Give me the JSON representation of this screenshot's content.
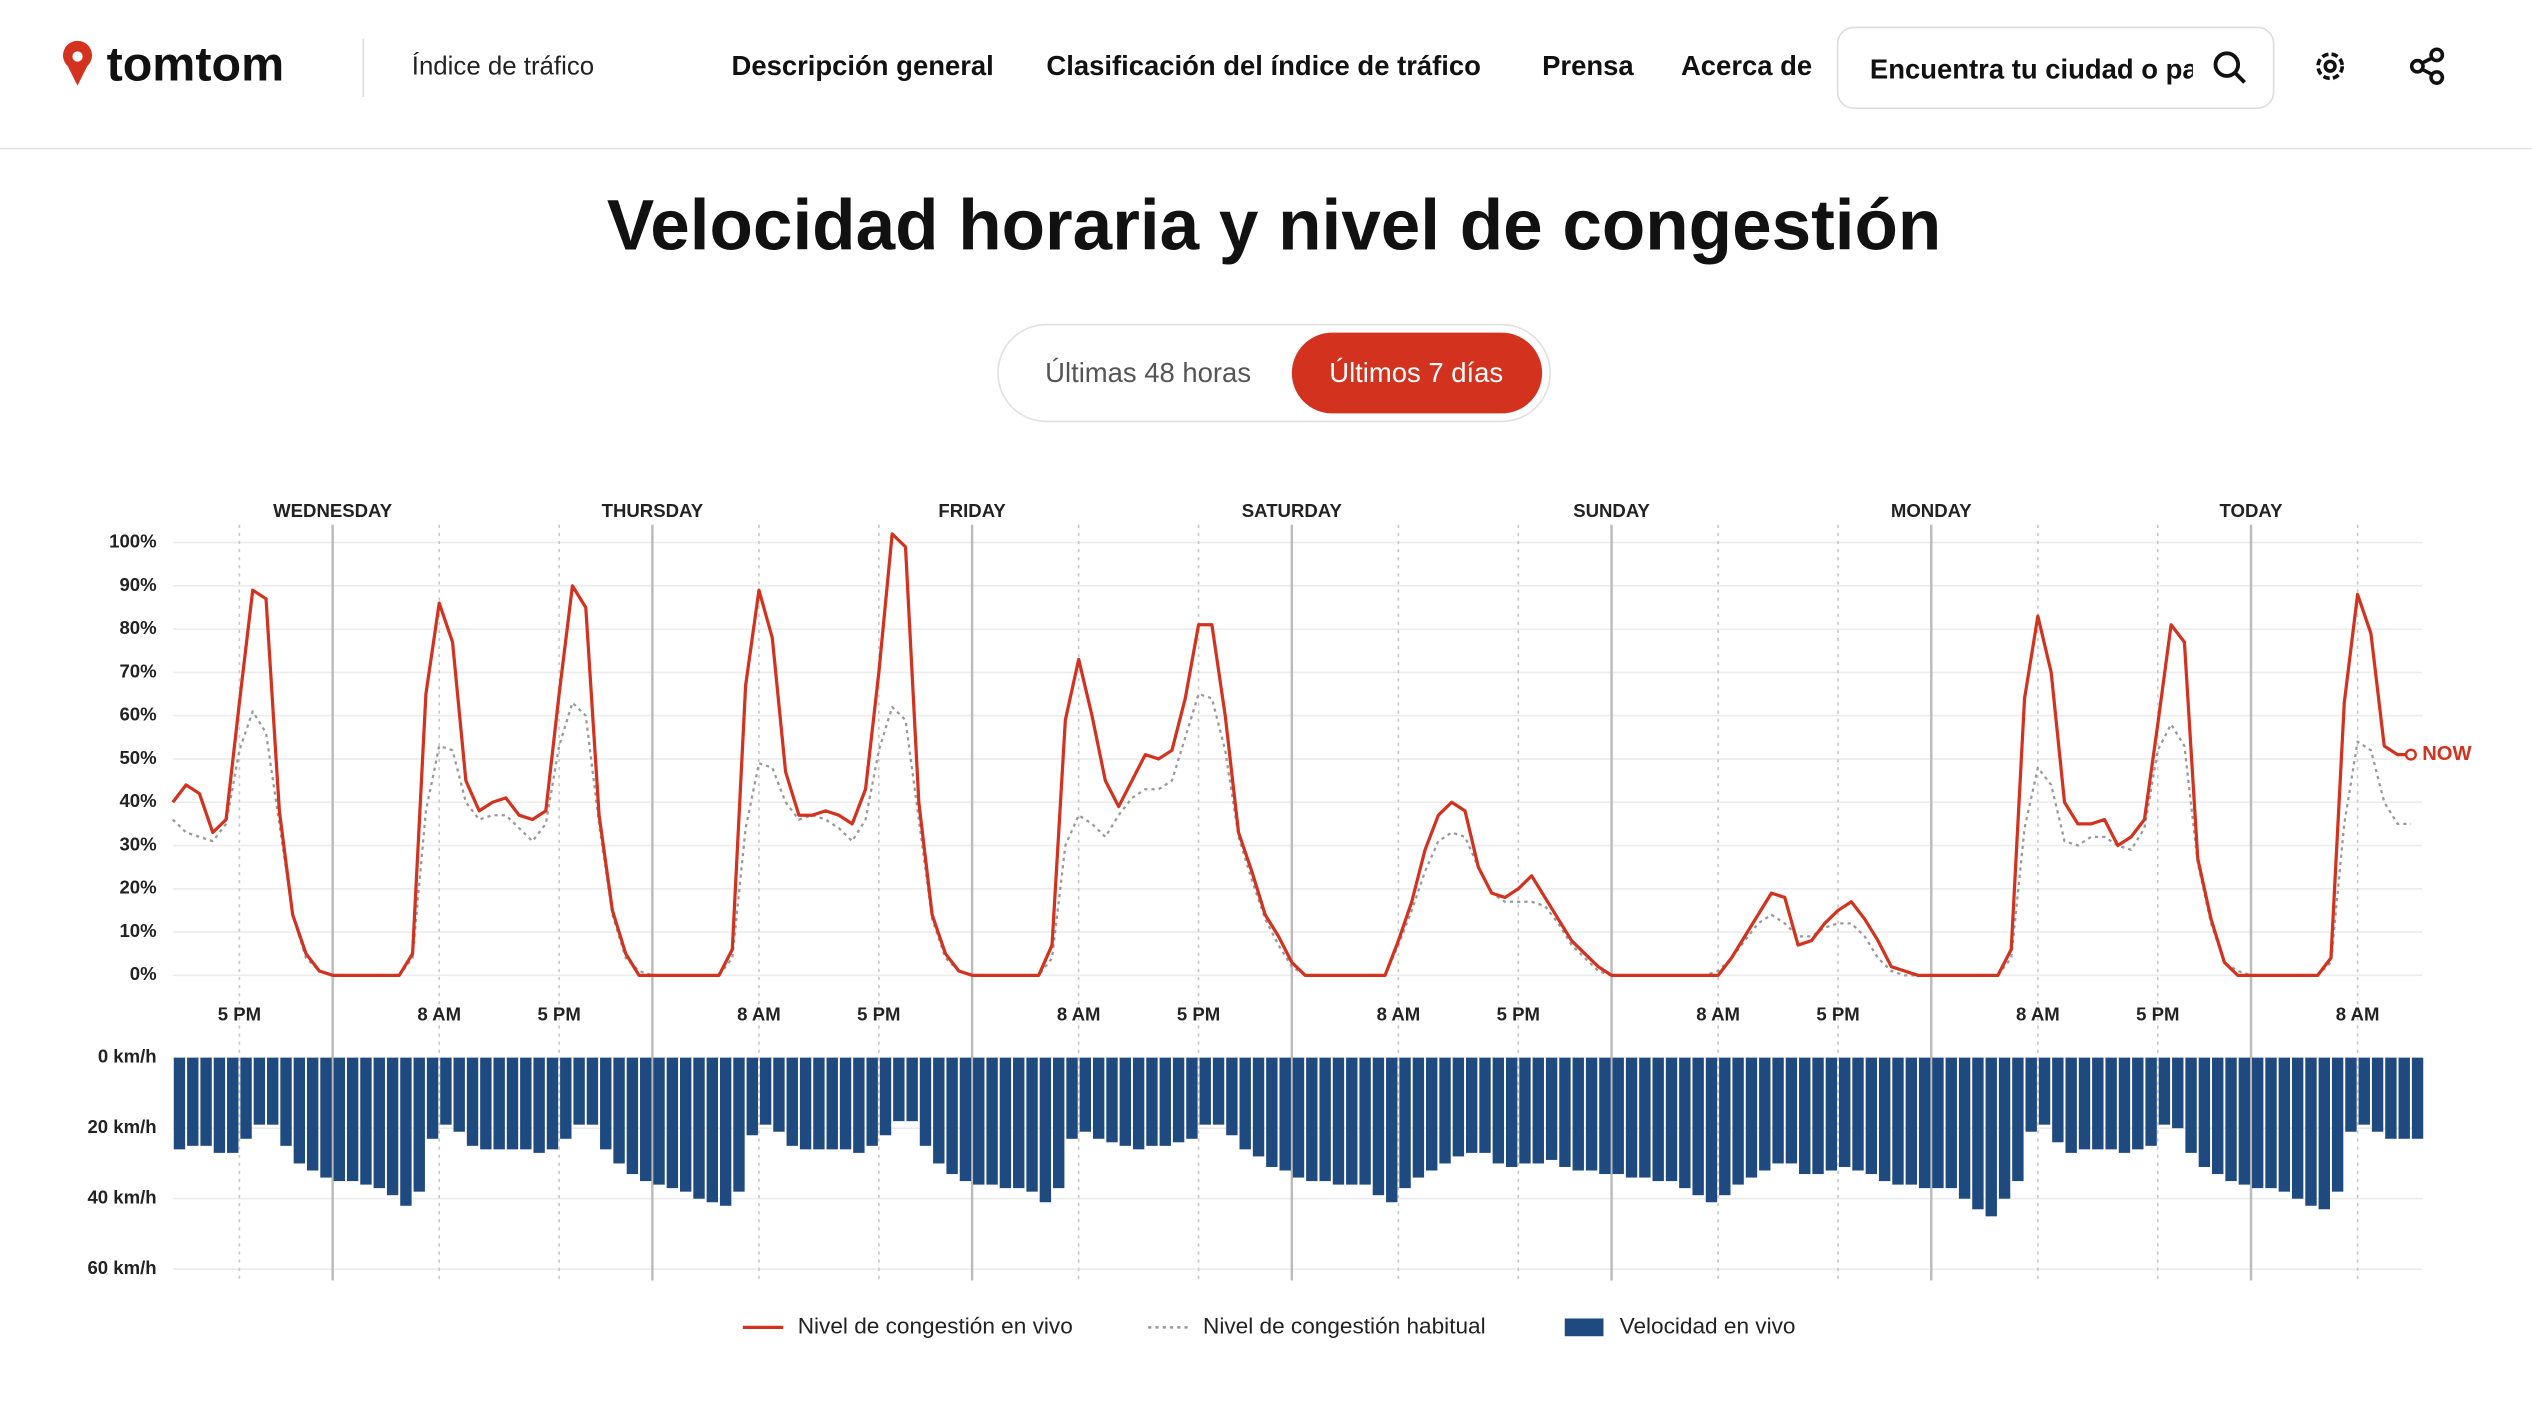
{
  "header": {
    "logo": "tomtom",
    "section": "Índice de tráfico",
    "nav": [
      "Descripción general",
      "Clasificación del índice de tráfico",
      "Prensa",
      "Acerca de"
    ],
    "search_placeholder": "Encuentra tu ciudad o país"
  },
  "controls": {
    "options": [
      "Últimas 48 horas",
      "Últimos 7 días"
    ],
    "selected": 1
  },
  "chart_data": [
    {
      "type": "line",
      "title": "Velocidad horaria y nivel de congestión",
      "xlim": [
        0,
        168
      ],
      "xticks": [
        {
          "value": 5,
          "label": "5 PM"
        },
        {
          "value": 20,
          "label": "8 AM"
        },
        {
          "value": 29,
          "label": "5 PM"
        },
        {
          "value": 44,
          "label": "8 AM"
        },
        {
          "value": 53,
          "label": "5 PM"
        },
        {
          "value": 68,
          "label": "8 AM"
        },
        {
          "value": 77,
          "label": "5 PM"
        },
        {
          "value": 92,
          "label": "8 AM"
        },
        {
          "value": 101,
          "label": "5 PM"
        },
        {
          "value": 116,
          "label": "8 AM"
        },
        {
          "value": 125,
          "label": "5 PM"
        },
        {
          "value": 140,
          "label": "8 AM"
        },
        {
          "value": 149,
          "label": "5 PM"
        },
        {
          "value": 164,
          "label": "8 AM"
        }
      ],
      "day_labels": [
        {
          "value": 12,
          "label": "WEDNESDAY"
        },
        {
          "value": 36,
          "label": "THURSDAY"
        },
        {
          "value": 60,
          "label": "FRIDAY"
        },
        {
          "value": 84,
          "label": "SATURDAY"
        },
        {
          "value": 108,
          "label": "SUNDAY"
        },
        {
          "value": 132,
          "label": "MONDAY"
        },
        {
          "value": 156,
          "label": "TODAY"
        }
      ],
      "ylim": [
        0,
        100
      ],
      "yticks": [
        {
          "value": 0,
          "label": "0%"
        },
        {
          "value": 10,
          "label": "10%"
        },
        {
          "value": 20,
          "label": "20%"
        },
        {
          "value": 30,
          "label": "30%"
        },
        {
          "value": 40,
          "label": "40%"
        },
        {
          "value": 50,
          "label": "50%"
        },
        {
          "value": 60,
          "label": "60%"
        },
        {
          "value": 70,
          "label": "70%"
        },
        {
          "value": 80,
          "label": "80%"
        },
        {
          "value": 90,
          "label": "90%"
        },
        {
          "value": 100,
          "label": "100%"
        }
      ],
      "grid": true,
      "annotation": "NOW",
      "series": [
        {
          "name": "Nivel de congestión en vivo",
          "color": "#d3321f",
          "style": "solid",
          "values": [
            40,
            44,
            42,
            33,
            36,
            63,
            89,
            87,
            38,
            14,
            5,
            1,
            0,
            0,
            0,
            0,
            0,
            0,
            5,
            65,
            86,
            77,
            45,
            38,
            40,
            41,
            37,
            36,
            38,
            65,
            90,
            85,
            37,
            15,
            5,
            0,
            0,
            0,
            0,
            0,
            0,
            0,
            6,
            67,
            89,
            78,
            47,
            37,
            37,
            38,
            37,
            35,
            43,
            70,
            102,
            99,
            40,
            14,
            5,
            1,
            0,
            0,
            0,
            0,
            0,
            0,
            7,
            59,
            73,
            60,
            45,
            39,
            45,
            51,
            50,
            52,
            64,
            81,
            81,
            60,
            33,
            24,
            14,
            9,
            3,
            0,
            0,
            0,
            0,
            0,
            0,
            0,
            8,
            17,
            29,
            37,
            40,
            38,
            25,
            19,
            18,
            20,
            23,
            18,
            13,
            8,
            5,
            2,
            0,
            0,
            0,
            0,
            0,
            0,
            0,
            0,
            0,
            4,
            9,
            14,
            19,
            18,
            7,
            8,
            12,
            15,
            17,
            13,
            8,
            2,
            1,
            0,
            0,
            0,
            0,
            0,
            0,
            0,
            6,
            64,
            83,
            70,
            40,
            35,
            35,
            36,
            30,
            32,
            36,
            58,
            81,
            77,
            27,
            13,
            3,
            0,
            0,
            0,
            0,
            0,
            0,
            0,
            4,
            63,
            88,
            79,
            53,
            51,
            51
          ]
        },
        {
          "name": "Nivel de congestión habitual",
          "color": "#999999",
          "style": "dotted",
          "values": [
            36,
            33,
            32,
            31,
            35,
            52,
            61,
            56,
            35,
            14,
            4,
            1,
            0,
            0,
            0,
            0,
            0,
            0,
            4,
            38,
            53,
            52,
            40,
            36,
            37,
            37,
            34,
            31,
            35,
            53,
            63,
            60,
            35,
            14,
            4,
            1,
            0,
            0,
            0,
            0,
            0,
            0,
            4,
            34,
            49,
            48,
            40,
            36,
            37,
            36,
            34,
            31,
            36,
            52,
            62,
            59,
            36,
            13,
            4,
            1,
            0,
            0,
            0,
            0,
            0,
            0,
            4,
            30,
            37,
            35,
            32,
            37,
            41,
            43,
            43,
            45,
            55,
            65,
            64,
            52,
            32,
            22,
            13,
            7,
            2,
            0,
            0,
            0,
            0,
            0,
            0,
            0,
            7,
            15,
            24,
            31,
            33,
            32,
            25,
            19,
            17,
            17,
            17,
            16,
            12,
            7,
            4,
            1,
            0,
            0,
            0,
            0,
            0,
            0,
            0,
            0,
            1,
            4,
            8,
            12,
            14,
            12,
            9,
            9,
            11,
            12,
            12,
            9,
            4,
            1,
            0,
            0,
            0,
            0,
            0,
            0,
            0,
            0,
            4,
            34,
            48,
            44,
            31,
            30,
            32,
            32,
            30,
            29,
            34,
            52,
            58,
            53,
            26,
            12,
            3,
            1,
            0,
            0,
            0,
            0,
            0,
            0,
            3,
            35,
            54,
            52,
            40,
            35,
            35
          ]
        }
      ]
    },
    {
      "type": "bar",
      "xlim": [
        0,
        168
      ],
      "ylim": [
        0,
        60
      ],
      "y_inverted": true,
      "grid": true,
      "yticks": [
        {
          "value": 0,
          "label": "0 km/h"
        },
        {
          "value": 20,
          "label": "20 km/h"
        },
        {
          "value": 40,
          "label": "40 km/h"
        },
        {
          "value": 60,
          "label": "60 km/h"
        }
      ],
      "series": [
        {
          "name": "Velocidad en vivo",
          "color": "#1f4a80",
          "values": [
            26,
            25,
            25,
            27,
            27,
            23,
            19,
            19,
            25,
            30,
            32,
            34,
            35,
            35,
            36,
            37,
            39,
            42,
            38,
            23,
            19,
            21,
            25,
            26,
            26,
            26,
            26,
            27,
            26,
            23,
            19,
            19,
            26,
            30,
            33,
            35,
            36,
            37,
            38,
            40,
            41,
            42,
            38,
            22,
            19,
            21,
            25,
            26,
            26,
            26,
            26,
            27,
            25,
            22,
            18,
            18,
            25,
            30,
            33,
            35,
            36,
            36,
            37,
            37,
            38,
            41,
            37,
            23,
            21,
            23,
            24,
            25,
            26,
            25,
            25,
            24,
            23,
            19,
            19,
            22,
            26,
            28,
            31,
            32,
            34,
            35,
            35,
            36,
            36,
            36,
            39,
            41,
            37,
            34,
            32,
            30,
            28,
            27,
            27,
            30,
            31,
            30,
            30,
            29,
            31,
            32,
            32,
            33,
            33,
            34,
            34,
            35,
            35,
            37,
            39,
            41,
            39,
            36,
            34,
            32,
            30,
            30,
            33,
            33,
            32,
            31,
            32,
            33,
            35,
            36,
            36,
            37,
            37,
            37,
            40,
            43,
            45,
            40,
            35,
            21,
            19,
            24,
            27,
            26,
            26,
            26,
            27,
            26,
            25,
            19,
            20,
            27,
            31,
            33,
            35,
            36,
            37,
            37,
            38,
            40,
            42,
            43,
            38,
            21,
            19,
            21,
            23,
            23,
            23
          ]
        }
      ]
    }
  ]
}
